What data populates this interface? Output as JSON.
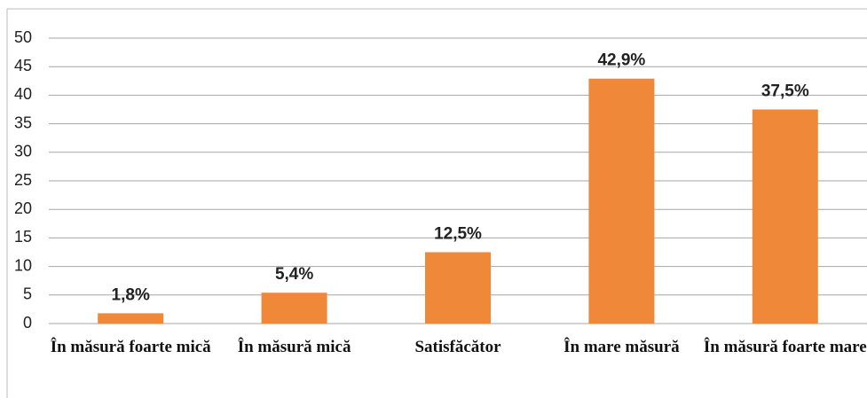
{
  "chart_data": {
    "type": "bar",
    "categories": [
      "În măsură foarte mică",
      "În măsură mică",
      "Satisfăcător",
      "În mare măsură",
      "În măsură foarte mare"
    ],
    "values": [
      1.8,
      5.4,
      12.5,
      42.9,
      37.5
    ],
    "value_labels": [
      "1,8%",
      "5,4%",
      "12,5%",
      "42,9%",
      "37,5%"
    ],
    "color": "#f0883a",
    "ylim": [
      0,
      50
    ],
    "yticks": [
      0,
      5,
      10,
      15,
      20,
      25,
      30,
      35,
      40,
      45,
      50
    ],
    "grid": true
  }
}
